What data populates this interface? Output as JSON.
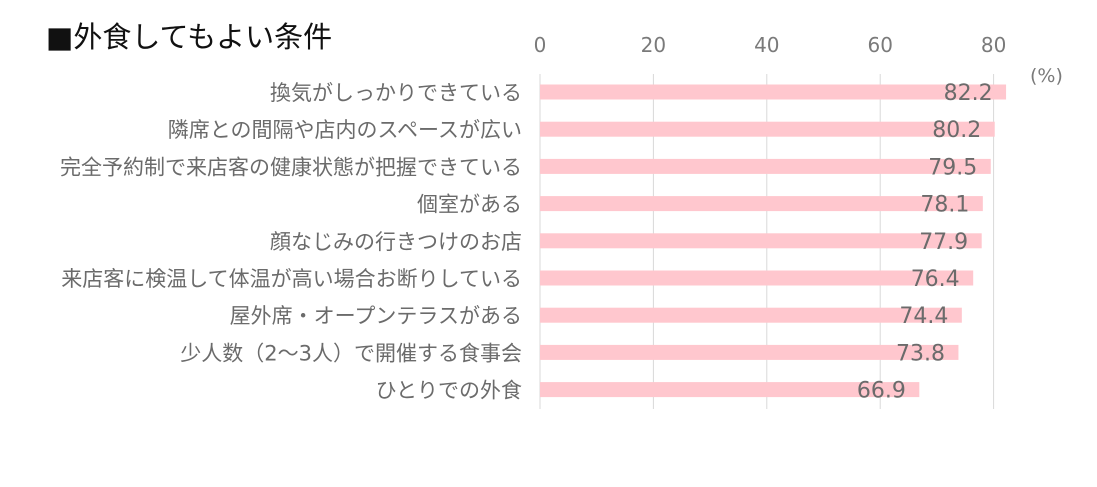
{
  "title": "■外食してもよい条件",
  "chart_data": {
    "type": "bar",
    "orientation": "horizontal",
    "title": "■外食してもよい条件",
    "unit": "(%)",
    "categories": [
      "換気がしっかりできている",
      "隣席との間隔や店内のスペースが広い",
      "完全予約制で来店客の健康状態が把握できている",
      "個室がある",
      "顔なじみの行きつけのお店",
      "来店客に検温して体温が高い場合お断りしている",
      "屋外席・オープンテラスがある",
      "少人数（2〜3人）で開催する食事会",
      "ひとりでの外食"
    ],
    "values": [
      82.2,
      80.2,
      79.5,
      78.1,
      77.9,
      76.4,
      74.4,
      73.8,
      66.9
    ],
    "xlim": [
      0,
      80
    ],
    "xticks": [
      0,
      20,
      40,
      60,
      80
    ],
    "grid": true,
    "bar_color": "#ffc7ce"
  }
}
